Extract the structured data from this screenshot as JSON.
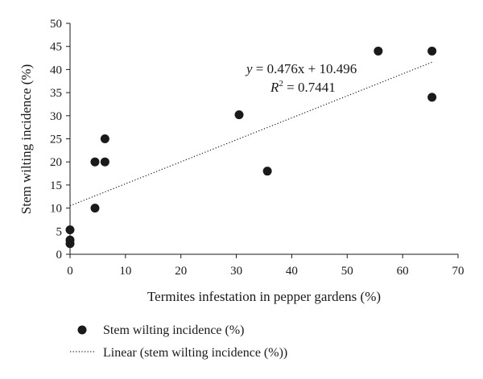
{
  "chart_data": {
    "type": "scatter",
    "xlabel": "Termites infestation in pepper gardens (%)",
    "ylabel": "Stem wilting incidence (%)",
    "xlim": [
      0,
      70
    ],
    "ylim": [
      0,
      50
    ],
    "xticks": [
      "0",
      "10",
      "20",
      "30",
      "40",
      "50",
      "60",
      "70"
    ],
    "yticks": [
      "0",
      "5",
      "10",
      "15",
      "20",
      "25",
      "30",
      "35",
      "40",
      "45",
      "50"
    ],
    "grid": false,
    "legend_position": "bottom",
    "series": [
      {
        "name": "Stem wilting incidence (%)",
        "marker": "circle",
        "color": "#1a1a1a",
        "points": [
          {
            "x": 0,
            "y": 2.3
          },
          {
            "x": 0,
            "y": 3.1
          },
          {
            "x": 0,
            "y": 5.3
          },
          {
            "x": 4.5,
            "y": 10
          },
          {
            "x": 4.5,
            "y": 20
          },
          {
            "x": 6.3,
            "y": 20
          },
          {
            "x": 6.3,
            "y": 25
          },
          {
            "x": 30.5,
            "y": 30.2
          },
          {
            "x": 35.6,
            "y": 18
          },
          {
            "x": 55.6,
            "y": 44
          },
          {
            "x": 65.3,
            "y": 44
          },
          {
            "x": 65.3,
            "y": 34
          }
        ]
      }
    ],
    "trendline": {
      "name": "Linear (stem wilting incidence (%))",
      "slope": 0.476,
      "intercept": 10.496,
      "x_range": [
        0,
        65.3
      ],
      "style": "dotted",
      "color": "#1a1a1a",
      "equation_prefix": "y",
      "equation_rhs": " = 0.476x + 10.496",
      "r2_prefix": "R",
      "r2_sup": "2",
      "r2_rhs": " = 0.7441"
    }
  }
}
